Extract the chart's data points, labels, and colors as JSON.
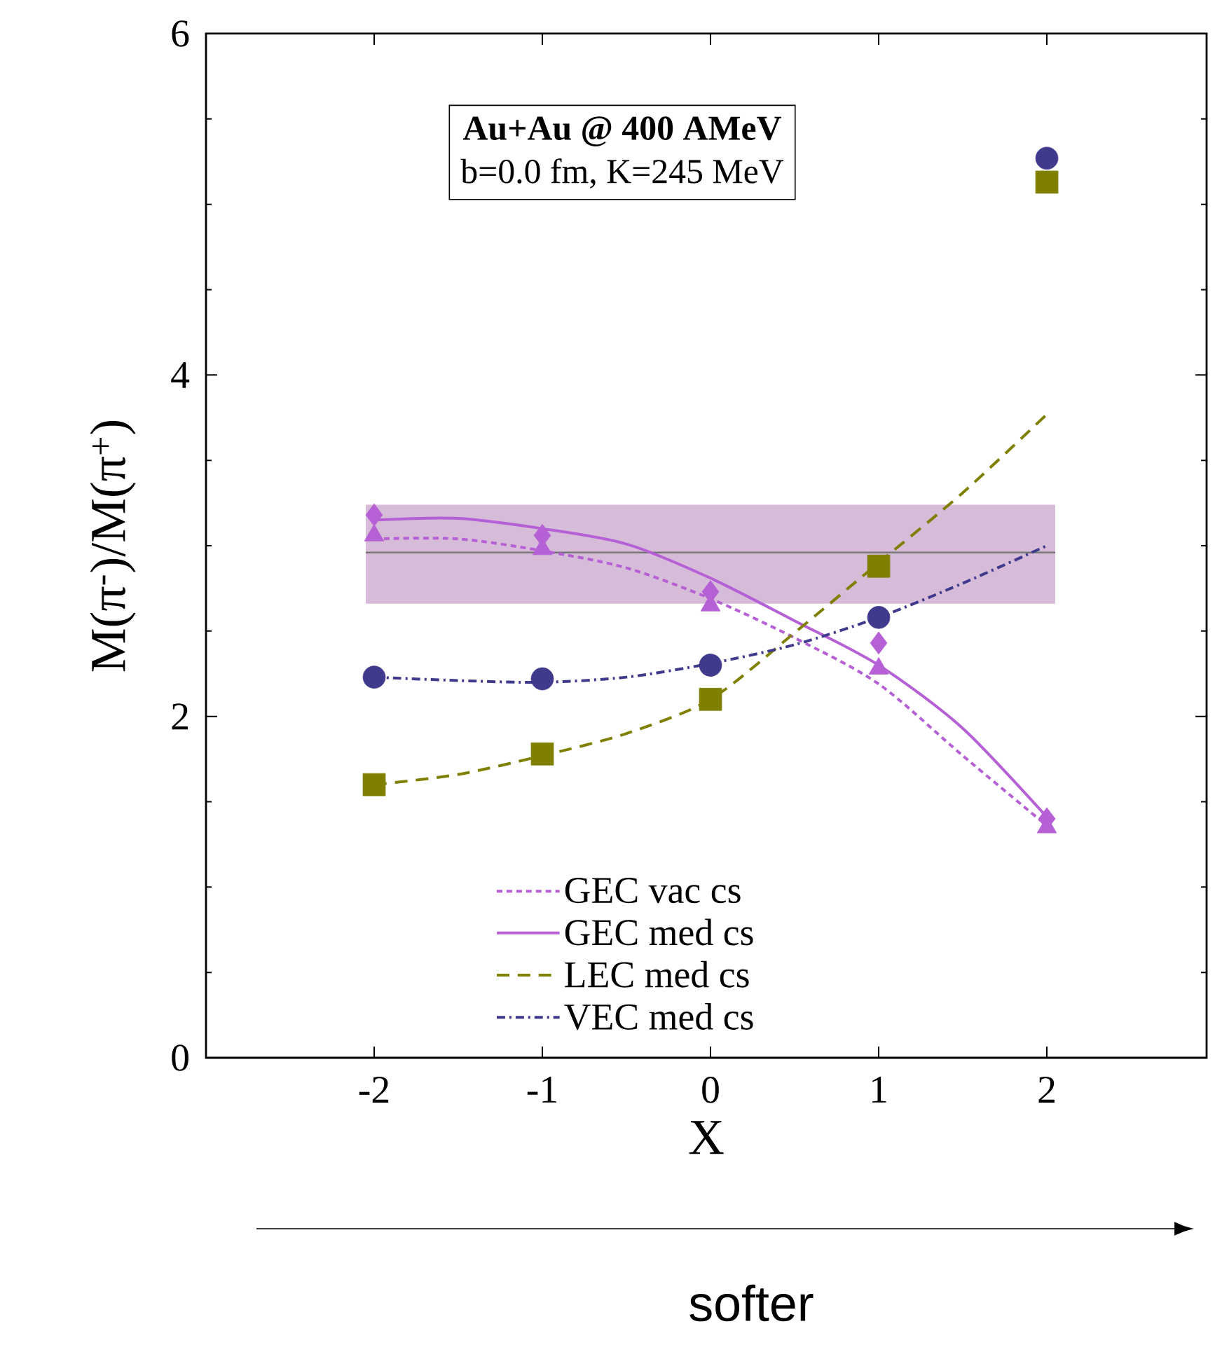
{
  "chart_data": {
    "type": "line",
    "title": "**Au+Au @ 400 AMeV**",
    "subtitle": "b=0.0 fm, K=245 MeV",
    "xlabel": "X",
    "ylabel": "M(π$^{-}$)/M(π$^{+}$)",
    "annotations": [
      "softer"
    ],
    "xlim": [
      -3,
      2.95
    ],
    "ylim": [
      0,
      6
    ],
    "xticks": [
      -2,
      -1,
      0,
      1,
      2
    ],
    "yticks": [
      0,
      2,
      4,
      6
    ],
    "legend": "bottom",
    "bands": [
      {
        "axis": "y",
        "from": 2.66,
        "to": 3.24,
        "color": "#d6bcd9"
      }
    ],
    "ref_lines": [
      {
        "axis": "y",
        "value": 2.96,
        "color": "#777777"
      }
    ],
    "series": [
      {
        "name": "GEC vac cs",
        "color": "#b660d6",
        "line_style": "dotted",
        "marker": "none",
        "x": [
          -2,
          -1.5,
          -1,
          -0.5,
          0,
          0.5,
          1,
          1.5,
          2
        ],
        "values": [
          3.04,
          3.04,
          2.97,
          2.87,
          2.69,
          2.46,
          2.19,
          1.77,
          1.36
        ]
      },
      {
        "name": "GEC med cs",
        "color": "#b660d6",
        "line_style": "solid",
        "marker": "none",
        "x": [
          -2,
          -1.5,
          -1,
          -0.5,
          0,
          0.5,
          1,
          1.5,
          2
        ],
        "values": [
          3.15,
          3.16,
          3.1,
          3.01,
          2.81,
          2.56,
          2.3,
          1.93,
          1.41
        ]
      },
      {
        "name": "LEC med cs",
        "color": "#808000",
        "line_style": "dashed",
        "marker": "none",
        "x": [
          -2,
          -1.5,
          -1,
          -0.5,
          0,
          0.5,
          1,
          1.5,
          2
        ],
        "values": [
          1.6,
          1.66,
          1.77,
          1.9,
          2.1,
          2.49,
          2.9,
          3.31,
          3.77
        ]
      },
      {
        "name": "VEC med cs",
        "color": "#403a8c",
        "line_style": "dashdot",
        "marker": "none",
        "x": [
          -2,
          -1.5,
          -1,
          -0.5,
          0,
          0.5,
          1,
          1.5,
          2
        ],
        "values": [
          2.23,
          2.21,
          2.2,
          2.23,
          2.31,
          2.42,
          2.58,
          2.78,
          3.0
        ]
      },
      {
        "type": "scatter",
        "color": "#403a8c",
        "marker": "circle",
        "x": [
          -2,
          -1,
          0,
          1,
          2
        ],
        "values": [
          2.23,
          2.22,
          2.3,
          2.58,
          5.27
        ]
      },
      {
        "type": "scatter",
        "color": "#808000",
        "marker": "square",
        "x": [
          -2,
          -1,
          0,
          1,
          2
        ],
        "values": [
          1.6,
          1.78,
          2.1,
          2.88,
          5.13
        ]
      },
      {
        "type": "scatter",
        "color": "#b660d6",
        "marker": "diamond",
        "x": [
          -2,
          -1,
          0,
          1,
          2
        ],
        "values": [
          3.18,
          3.06,
          2.73,
          2.43,
          1.4
        ]
      },
      {
        "type": "scatter",
        "color": "#b660d6",
        "marker": "triangle",
        "x": [
          -2,
          -1,
          0,
          1,
          2
        ],
        "values": [
          3.06,
          2.98,
          2.65,
          2.28,
          1.35
        ]
      }
    ]
  }
}
